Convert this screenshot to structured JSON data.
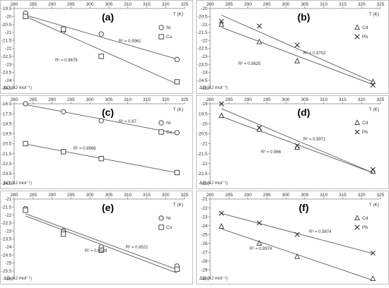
{
  "chart_data": [
    {
      "type": "scatter",
      "panel_label": "(a)",
      "x_axis": {
        "label": "T (K)",
        "ticks": [
          280,
          285,
          290,
          295,
          300,
          305,
          310,
          315,
          320,
          325
        ],
        "range": [
          280,
          325
        ],
        "position": "top"
      },
      "y_axis": {
        "label": "ΔG (kJ mol⁻¹)",
        "ticks": [
          -19.5,
          -20,
          -20.5,
          -21,
          -21.5,
          -22,
          -22.5,
          -23,
          -23.5,
          -24,
          -24.5
        ],
        "range": [
          -24.5,
          -19.5
        ]
      },
      "series": [
        {
          "name": "Ni",
          "marker": "circle",
          "x": [
            283,
            293,
            303,
            323
          ],
          "y": [
            -19.8,
            -20.9,
            -21.1,
            -22.7
          ],
          "r2": "R² = 0.9961"
        },
        {
          "name": "Cu",
          "marker": "square",
          "x": [
            283,
            293,
            303,
            323
          ],
          "y": [
            -20.0,
            -20.8,
            -22.5,
            -24.1
          ],
          "r2": "R² = 0.9679"
        }
      ],
      "legend_position": "right"
    },
    {
      "type": "scatter",
      "panel_label": "(b)",
      "x_axis": {
        "label": "T (K)",
        "ticks": [
          280,
          285,
          290,
          295,
          300,
          305,
          310,
          315,
          320,
          325
        ],
        "range": [
          280,
          325
        ],
        "position": "top"
      },
      "y_axis": {
        "label": "ΔG (kJ mol⁻¹)",
        "ticks": [
          -20,
          -20.5,
          -21,
          -21.5,
          -22,
          -22.5,
          -23,
          -23.5,
          -24,
          -24.5,
          -25
        ],
        "range": [
          -25,
          -20
        ]
      },
      "series": [
        {
          "name": "Cd",
          "marker": "triangle",
          "x": [
            283,
            293,
            303,
            323
          ],
          "y": [
            -21.0,
            -22.1,
            -23.3,
            -24.6
          ],
          "r2": "R² = 0.9625"
        },
        {
          "name": "Pb",
          "marker": "cross",
          "x": [
            283,
            293,
            303,
            323
          ],
          "y": [
            -20.8,
            -21.1,
            -22.3,
            -24.8
          ],
          "r2": "R² = 0.9702"
        }
      ],
      "legend_position": "right"
    },
    {
      "type": "scatter",
      "panel_label": "(c)",
      "x_axis": {
        "label": "T (K)",
        "ticks": [
          280,
          285,
          290,
          295,
          300,
          305,
          310,
          315,
          320,
          325
        ],
        "range": [
          280,
          325
        ],
        "position": "top"
      },
      "y_axis": {
        "label": "ΔG (kJ mol⁻¹)",
        "ticks": [
          -16.5,
          -17.5,
          -18.5,
          -19.5,
          -20.5,
          -21.5,
          -22.5,
          -23.5,
          -24.5
        ],
        "range": [
          -24.5,
          -16.5
        ]
      },
      "series": [
        {
          "name": "Ni",
          "marker": "circle",
          "x": [
            283,
            293,
            303,
            323
          ],
          "y": [
            -16.5,
            -17.3,
            -18.2,
            -19.4
          ],
          "r2": "R² = 0.97"
        },
        {
          "name": "Cu",
          "marker": "square",
          "x": [
            283,
            293,
            303,
            323
          ],
          "y": [
            -20.5,
            -21.3,
            -22.0,
            -23.4
          ],
          "r2": "R² = 0.9966"
        }
      ],
      "legend_position": "right"
    },
    {
      "type": "scatter",
      "panel_label": "(d)",
      "x_axis": {
        "label": "T (K)",
        "ticks": [
          280,
          285,
          290,
          295,
          300,
          305,
          310,
          315,
          320,
          325
        ],
        "range": [
          280,
          325
        ],
        "position": "top"
      },
      "y_axis": {
        "label": "ΔG (kJ mol⁻¹)",
        "ticks": [
          -19,
          -19.5,
          -20,
          -20.5,
          -21,
          -21.5,
          -22,
          -22.5,
          -23
        ],
        "range": [
          -23,
          -19
        ]
      },
      "series": [
        {
          "name": "Cd",
          "marker": "triangle",
          "x": [
            283,
            293,
            303,
            323
          ],
          "y": [
            -19.6,
            -20.3,
            -21.2,
            -22.4
          ],
          "r2": "R² = 0.966"
        },
        {
          "name": "Pb",
          "marker": "cross",
          "x": [
            283,
            293,
            303,
            323
          ],
          "y": [
            -19.0,
            -20.2,
            -21.1,
            -22.3
          ],
          "r2": "R² = 0.9971"
        }
      ],
      "legend_position": "right"
    },
    {
      "type": "scatter",
      "panel_label": "(e)",
      "x_axis": {
        "label": "T (K)",
        "ticks": [
          280,
          285,
          290,
          295,
          300,
          305,
          310,
          315,
          320,
          325
        ],
        "range": [
          280,
          325
        ],
        "position": "top"
      },
      "y_axis": {
        "label": "ΔG (kJ mol⁻¹)",
        "ticks": [
          -21,
          -21.5,
          -22,
          -22.5,
          -23,
          -23.5,
          -24,
          -24.5,
          -25,
          -25.5,
          -26
        ],
        "range": [
          -26,
          -21
        ]
      },
      "series": [
        {
          "name": "Ni",
          "marker": "circle",
          "x": [
            283,
            293,
            303,
            323
          ],
          "y": [
            -21.6,
            -23.0,
            -24.0,
            -25.2
          ],
          "r2": "R² = 0.9521"
        },
        {
          "name": "Cu",
          "marker": "square",
          "x": [
            283,
            293,
            303,
            323
          ],
          "y": [
            -21.7,
            -23.2,
            -24.2,
            -25.4
          ],
          "r2": "R² = 0.9528"
        }
      ],
      "legend_position": "right"
    },
    {
      "type": "scatter",
      "panel_label": "(f)",
      "x_axis": {
        "label": "T (K)",
        "ticks": [
          280,
          285,
          290,
          295,
          300,
          305,
          310,
          315,
          320,
          325
        ],
        "range": [
          280,
          325
        ],
        "position": "top"
      },
      "y_axis": {
        "label": "ΔG (kJ mol⁻¹)",
        "ticks": [
          -21,
          -22,
          -23,
          -24,
          -25,
          -26,
          -27,
          -28,
          -29,
          -30
        ],
        "range": [
          -30,
          -21
        ]
      },
      "series": [
        {
          "name": "Cd",
          "marker": "triangle",
          "x": [
            283,
            293,
            303,
            323
          ],
          "y": [
            -24.1,
            -26.0,
            -27.5,
            -30.0
          ],
          "r2": "R² = 0.9974"
        },
        {
          "name": "Pb",
          "marker": "cross",
          "x": [
            283,
            293,
            303,
            323
          ],
          "y": [
            -22.6,
            -23.7,
            -25.0,
            -27.1
          ],
          "r2": "R² = 0.9874"
        }
      ],
      "legend_position": "right"
    }
  ]
}
